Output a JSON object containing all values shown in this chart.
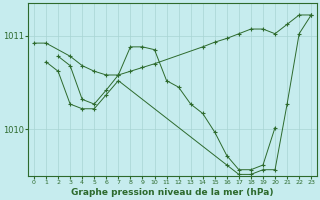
{
  "title": "Graphe pression niveau de la mer (hPa)",
  "background_color": "#c6ecee",
  "line_color": "#2d6a2d",
  "grid_color": "#a8d4d4",
  "xlim": [
    -0.5,
    23.5
  ],
  "ylim": [
    1009.5,
    1011.35
  ],
  "yticks": [
    1010,
    1011
  ],
  "xticks": [
    0,
    1,
    2,
    3,
    4,
    5,
    6,
    7,
    8,
    9,
    10,
    11,
    12,
    13,
    14,
    15,
    16,
    17,
    18,
    19,
    20,
    21,
    22,
    23
  ],
  "series1_x": [
    0,
    1,
    3,
    4,
    5,
    6,
    7,
    8,
    9,
    10,
    14,
    15,
    16,
    17,
    18,
    19,
    20,
    21,
    22,
    23
  ],
  "series1_y": [
    1010.92,
    1010.92,
    1010.78,
    1010.68,
    1010.62,
    1010.58,
    1010.58,
    1010.62,
    1010.66,
    1010.7,
    1010.88,
    1010.93,
    1010.97,
    1011.02,
    1011.07,
    1011.07,
    1011.02,
    1011.12,
    1011.22,
    1011.22
  ],
  "series2_x": [
    2,
    3,
    4,
    5,
    6,
    7,
    8,
    9,
    10,
    11,
    12,
    13,
    14,
    15,
    16,
    17,
    18,
    19,
    20
  ],
  "series2_y": [
    1010.78,
    1010.68,
    1010.32,
    1010.27,
    1010.42,
    1010.58,
    1010.88,
    1010.88,
    1010.85,
    1010.52,
    1010.45,
    1010.27,
    1010.17,
    1009.97,
    1009.72,
    1009.57,
    1009.57,
    1009.62,
    1010.02
  ],
  "series3_x": [
    1,
    2,
    3,
    4,
    5,
    6,
    7,
    16,
    17,
    18,
    19,
    20,
    21,
    22,
    23
  ],
  "series3_y": [
    1010.72,
    1010.62,
    1010.27,
    1010.22,
    1010.22,
    1010.37,
    1010.52,
    1009.62,
    1009.52,
    1009.52,
    1009.57,
    1009.57,
    1010.27,
    1011.02,
    1011.22
  ]
}
